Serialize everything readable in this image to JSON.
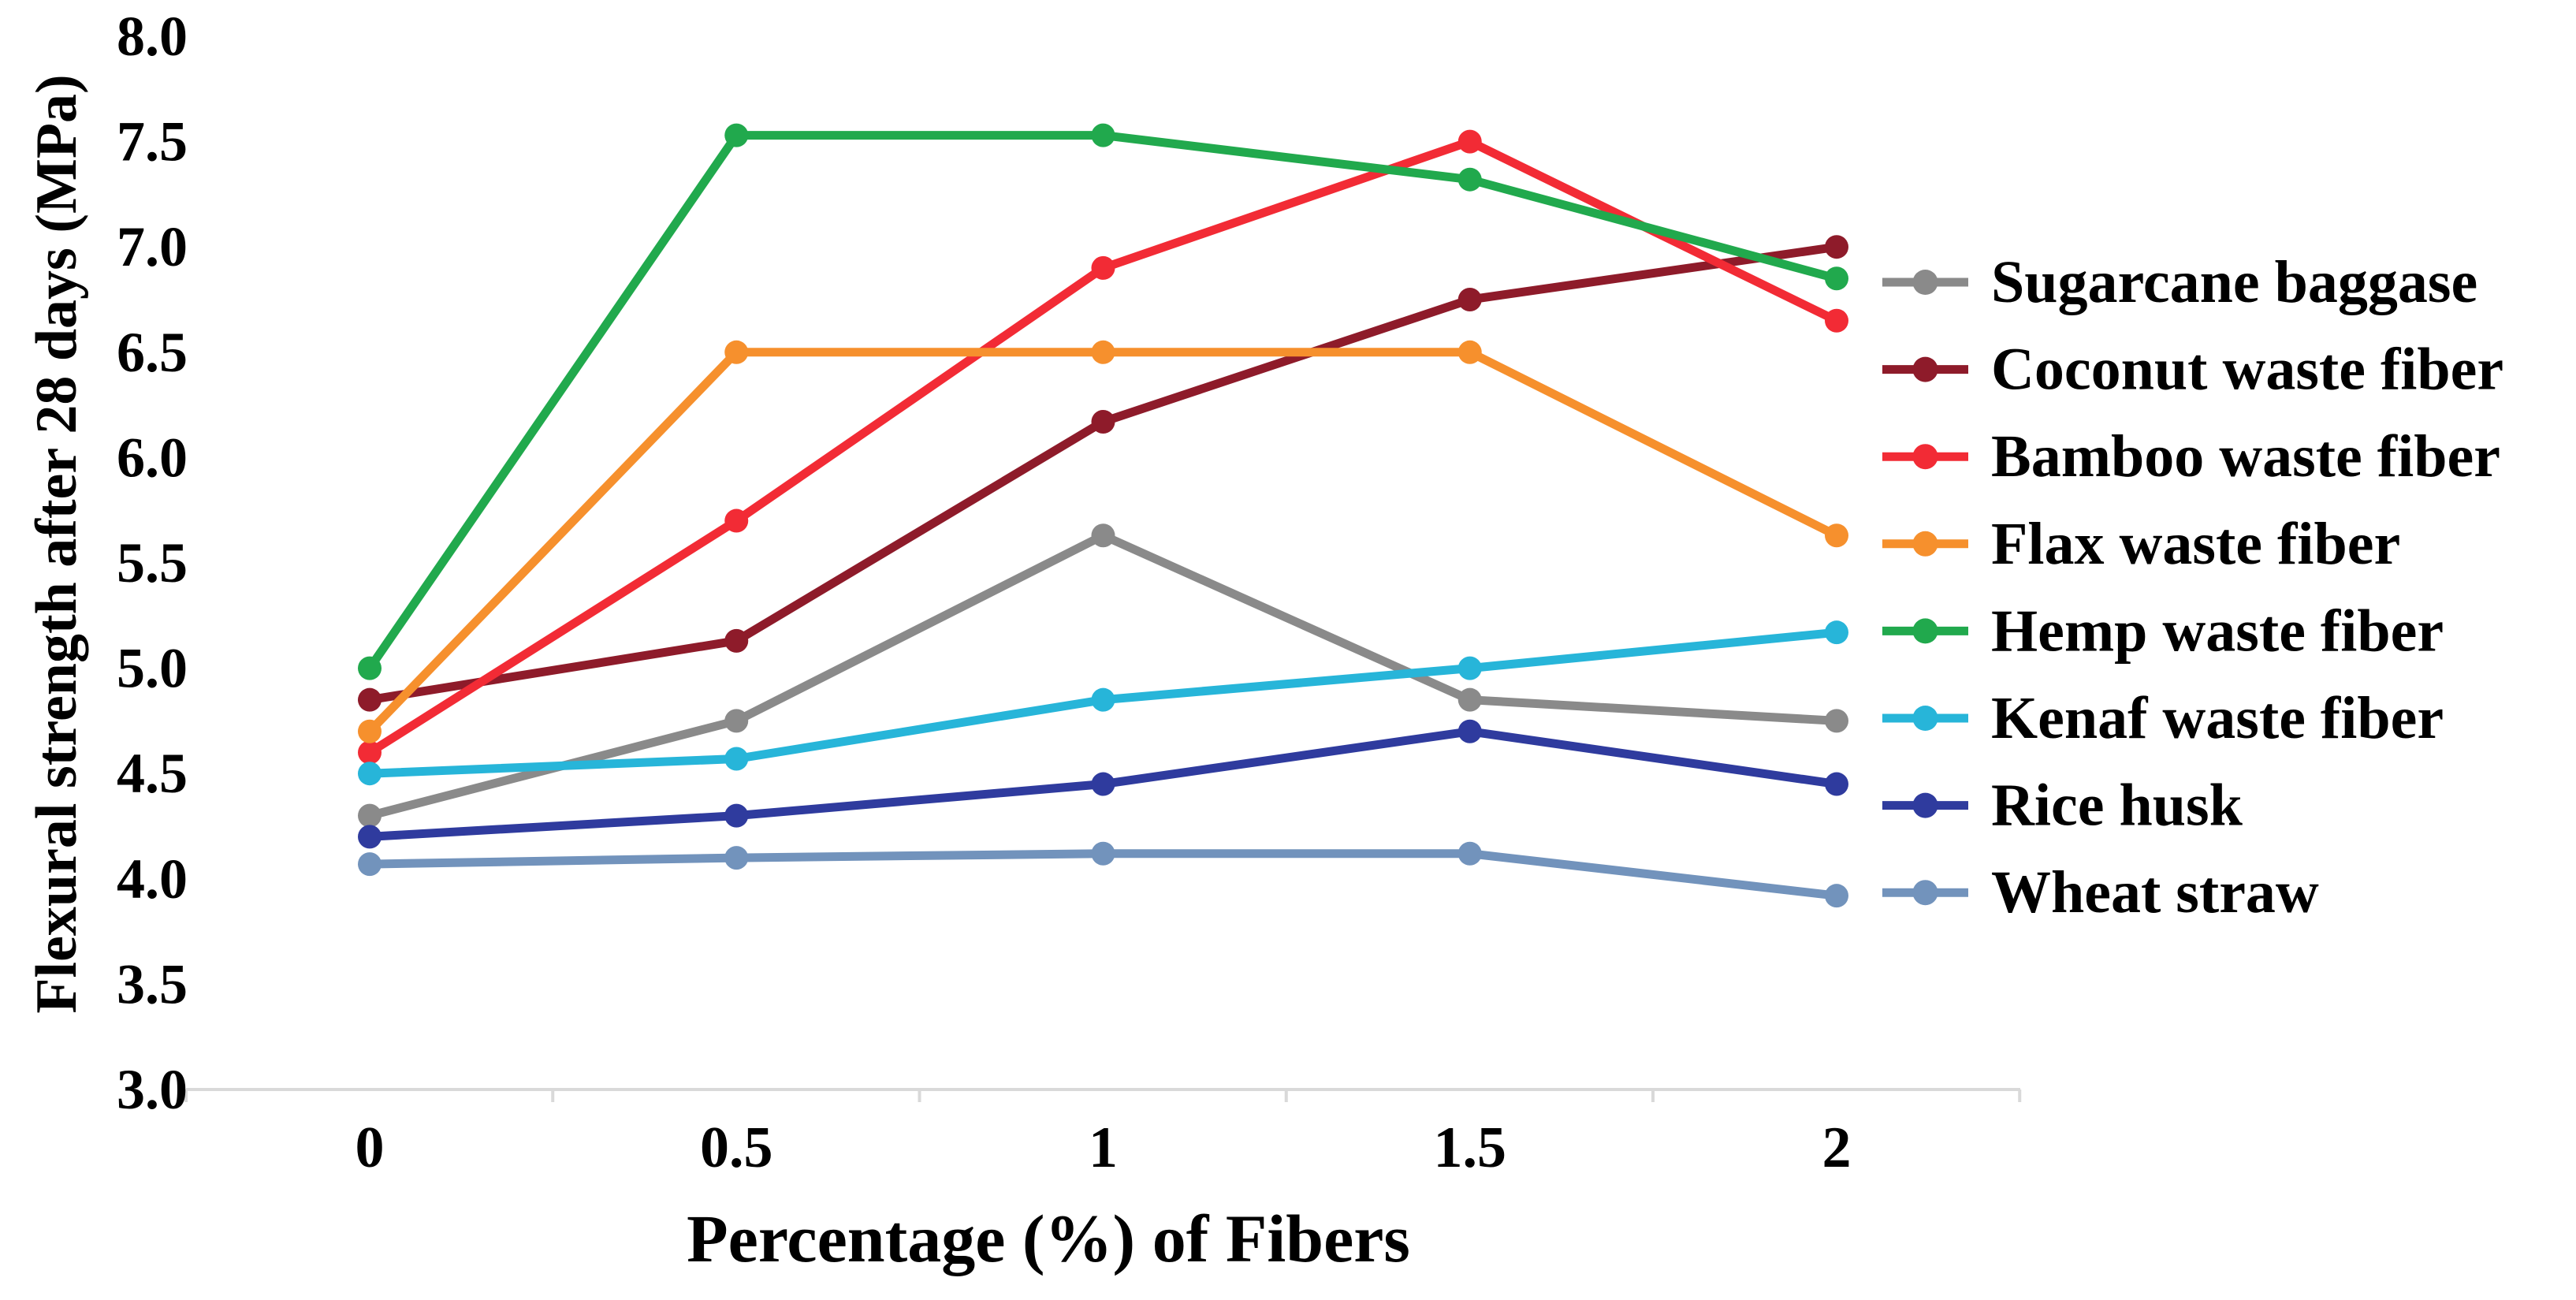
{
  "chart_data": {
    "type": "line",
    "title": "",
    "xlabel": "Percentage (%) of Fibers",
    "ylabel": "Flexural strength after 28 days (MPa)",
    "x": [
      0,
      0.5,
      1,
      1.5,
      2
    ],
    "x_tick_labels": [
      "0",
      "0.5",
      "1",
      "1.5",
      "2"
    ],
    "ylim": [
      3.0,
      8.0
    ],
    "y_ticks": [
      3.0,
      3.5,
      4.0,
      4.5,
      5.0,
      5.5,
      6.0,
      6.5,
      7.0,
      7.5,
      8.0
    ],
    "y_tick_labels": [
      "3.0",
      "3.5",
      "4.0",
      "4.5",
      "5.0",
      "5.5",
      "6.0",
      "6.5",
      "7.0",
      "7.5",
      "8.0"
    ],
    "grid": false,
    "legend_position": "right",
    "axis_line_color": "#d9d9d9",
    "background_color": "#ffffff",
    "text_color": "#000000",
    "series": [
      {
        "name": "Sugarcane baggase",
        "color": "#8a8a8a",
        "values": [
          4.3,
          4.75,
          5.63,
          4.85,
          4.75
        ]
      },
      {
        "name": "Coconut waste fiber",
        "color": "#8e1b2a",
        "values": [
          4.85,
          5.13,
          6.17,
          6.75,
          7.0
        ]
      },
      {
        "name": "Bamboo waste fiber",
        "color": "#f22b35",
        "values": [
          4.6,
          5.7,
          6.9,
          7.5,
          6.65
        ]
      },
      {
        "name": "Flax waste fiber",
        "color": "#f6902d",
        "values": [
          4.7,
          6.5,
          6.5,
          6.5,
          5.63
        ]
      },
      {
        "name": "Hemp waste fiber",
        "color": "#21a94d",
        "values": [
          5.0,
          7.53,
          7.53,
          7.32,
          6.85
        ]
      },
      {
        "name": "Kenaf waste fiber",
        "color": "#27b5d9",
        "values": [
          4.5,
          4.57,
          4.85,
          5.0,
          5.17
        ]
      },
      {
        "name": "Rice husk",
        "color": "#2f3b9e",
        "values": [
          4.2,
          4.3,
          4.45,
          4.7,
          4.45
        ]
      },
      {
        "name": "Wheat straw",
        "color": "#7293bc",
        "values": [
          4.07,
          4.1,
          4.12,
          4.12,
          3.92
        ]
      }
    ]
  }
}
